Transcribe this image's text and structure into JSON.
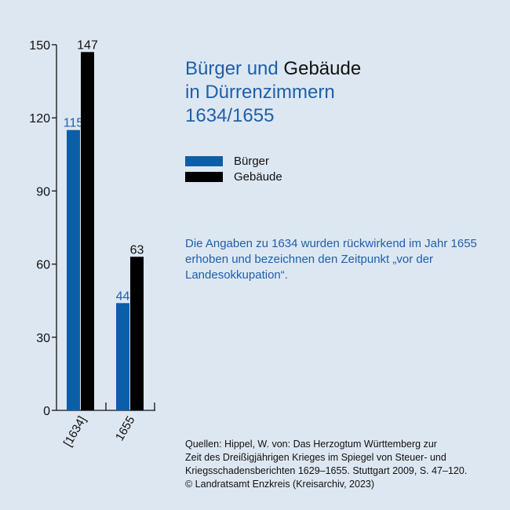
{
  "title": {
    "line1_part1": "Bürger und",
    "line1_part2": "Gebäude",
    "line2": "in Dürrenzimmern",
    "line3": "1634/1655"
  },
  "legend": [
    {
      "label": "Bürger",
      "color": "#0b5ea8"
    },
    {
      "label": "Gebäude",
      "color": "#000000"
    }
  ],
  "note": "Die Angaben zu 1634 wurden rückwirkend im Jahr 1655 erhoben und bezeichnen den Zeitpunkt „vor der Landesokkupation“.",
  "sources": {
    "line1": "Quellen: Hippel, W. von: Das Herzogtum Württemberg zur",
    "line2": "Zeit des Dreißigjährigen Krieges im Spiegel von Steuer- und",
    "line3": "Kriegsschadensberichten 1629–1655. Stuttgart 2009, S. 47–120.",
    "line4": "© Landratsamt Enzkreis (Kreisarchiv, 2023)"
  },
  "chart_data": {
    "type": "bar",
    "categories": [
      "[1634]",
      "1655"
    ],
    "series": [
      {
        "name": "Bürger",
        "values": [
          115,
          44
        ],
        "color": "#0b5ea8",
        "label_color": "#1f5fa8"
      },
      {
        "name": "Gebäude",
        "values": [
          147,
          63
        ],
        "color": "#000000",
        "label_color": "#111111"
      }
    ],
    "yticks": [
      0,
      30,
      60,
      90,
      120,
      150
    ],
    "ylim": [
      0,
      150
    ],
    "grid": false,
    "legend_position": "right"
  }
}
